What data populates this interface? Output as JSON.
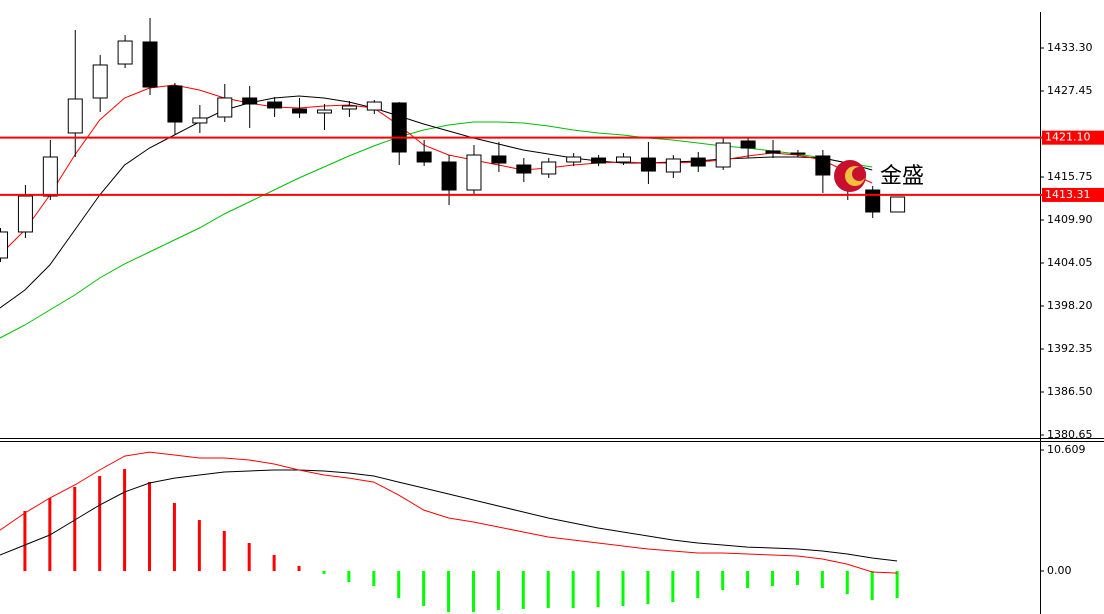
{
  "chart_data": [
    {
      "type": "candlestick",
      "ylim": [
        1380.24,
        1439.83
      ],
      "yticks": [
        {
          "value": 1433.3,
          "label": "1433.30"
        },
        1427.45,
        1415.75,
        {
          "value": 1409.9,
          "label": "1409.90"
        },
        1404.05,
        {
          "value": 1398.2,
          "label": "1398.20"
        },
        1392.35,
        {
          "value": 1386.5,
          "label": "1386.50"
        },
        1380.65
      ],
      "up_color": "#ffffff",
      "down_color": "#000000",
      "open": [
        1404.73,
        1408.27,
        1413.16,
        1421.74,
        1426.5,
        1431.12,
        1434.12,
        1428.13,
        1423.1,
        1423.91,
        1426.5,
        1425.95,
        1425.0,
        1424.46,
        1425.0,
        1424.86,
        1425.82,
        1419.15,
        1417.79,
        1413.98,
        1418.61,
        1417.38,
        1416.16,
        1417.79,
        1418.33,
        1417.79,
        1418.33,
        1416.43,
        1418.33,
        1417.11,
        1420.65,
        1419.29,
        1419.01,
        1418.61,
        1416.97,
        1413.98,
        1410.99
      ],
      "high": [
        1408.81,
        1414.66,
        1420.78,
        1435.75,
        1432.35,
        1435.07,
        1437.38,
        1428.54,
        1425.54,
        1428.4,
        1428.13,
        1426.63,
        1426.5,
        1425.68,
        1426.09,
        1426.23,
        1425.95,
        1420.78,
        1418.74,
        1420.1,
        1420.51,
        1418.33,
        1418.33,
        1419.01,
        1418.74,
        1419.01,
        1420.51,
        1418.74,
        1419.15,
        1421.19,
        1421.19,
        1420.78,
        1419.42,
        1419.42,
        1417.38,
        1414.52,
        1413.03
      ],
      "low": [
        1404.19,
        1407.45,
        1412.62,
        1418.47,
        1424.59,
        1430.58,
        1426.9,
        1421.46,
        1421.74,
        1423.23,
        1422.42,
        1423.91,
        1423.78,
        1422.14,
        1423.91,
        1424.32,
        1417.38,
        1417.24,
        1411.94,
        1413.3,
        1416.43,
        1415.07,
        1415.61,
        1417.24,
        1417.24,
        1417.38,
        1414.8,
        1415.61,
        1416.43,
        1416.7,
        1418.33,
        1418.33,
        1418.47,
        1413.57,
        1412.62,
        1410.17,
        1410.99
      ],
      "close": [
        1408.27,
        1413.16,
        1418.47,
        1426.36,
        1430.99,
        1434.25,
        1427.99,
        1423.23,
        1423.78,
        1426.5,
        1425.68,
        1425.14,
        1424.46,
        1424.86,
        1425.41,
        1425.95,
        1419.15,
        1417.79,
        1413.98,
        1418.74,
        1417.65,
        1416.29,
        1417.79,
        1418.47,
        1417.65,
        1418.47,
        1416.56,
        1418.2,
        1417.24,
        1420.37,
        1419.69,
        1419.01,
        1418.88,
        1416.02,
        1414.52,
        1410.99,
        1413.03
      ],
      "lines": [
        {
          "color": "#00c000",
          "values": [
            1393.85,
            1395.61,
            1397.65,
            1399.7,
            1402.01,
            1403.91,
            1405.55,
            1407.18,
            1408.81,
            1410.72,
            1412.35,
            1413.98,
            1415.61,
            1417.11,
            1418.61,
            1419.97,
            1421.19,
            1422.14,
            1422.82,
            1423.23,
            1423.23,
            1423.1,
            1422.69,
            1422.14,
            1421.74,
            1421.46,
            1421.06,
            1420.78,
            1420.37,
            1419.97,
            1419.69,
            1419.29,
            1418.88,
            1418.33,
            1417.65,
            1417.11,
            null
          ]
        },
        {
          "color": "#000000",
          "values": [
            1397.93,
            1400.38,
            1403.78,
            1408.54,
            1413.3,
            1417.38,
            1419.69,
            1421.46,
            1423.23,
            1424.86,
            1425.82,
            1426.5,
            1426.77,
            1426.5,
            1425.95,
            1425.14,
            1424.05,
            1422.96,
            1422.01,
            1421.06,
            1420.24,
            1419.42,
            1418.88,
            1418.33,
            1417.93,
            1417.65,
            1417.65,
            1417.79,
            1417.93,
            1418.2,
            1418.33,
            1418.47,
            1418.47,
            1418.33,
            1417.65,
            1416.7,
            null
          ]
        },
        {
          "color": "#ff0000",
          "values": [
            1405.14,
            1408.54,
            1413.3,
            1418.74,
            1423.5,
            1426.5,
            1427.86,
            1428.27,
            1427.59,
            1426.5,
            1425.82,
            1425.27,
            1425.14,
            1425.41,
            1425.54,
            1425.14,
            1422.82,
            1420.1,
            1418.74,
            1418.06,
            1417.38,
            1416.7,
            1416.97,
            1417.38,
            1417.65,
            1417.79,
            1417.65,
            1417.65,
            1417.79,
            1418.06,
            1418.61,
            1419.01,
            1418.74,
            1418.06,
            1416.43,
            1414.93,
            null
          ]
        }
      ],
      "hlines": [
        {
          "value": 1421.1,
          "label": "1421.10",
          "color": "#ff0000"
        },
        {
          "value": 1413.31,
          "label": "1413.31",
          "color": "#ff0000"
        }
      ],
      "annotation": "金盛"
    },
    {
      "type": "macd",
      "ylim": [
        -3.77,
        11.4
      ],
      "yticks": [
        10.609,
        {
          "value": 0,
          "label": "0.00"
        }
      ],
      "up_color": "#ff0000",
      "down_color": "#00ff00",
      "values": [
        null,
        5.26,
        6.4,
        7.37,
        8.33,
        8.94,
        7.8,
        5.96,
        4.47,
        3.51,
        2.46,
        1.4,
        0.44,
        -0.26,
        -0.96,
        -1.32,
        -2.37,
        -3.07,
        -3.59,
        -3.59,
        -3.42,
        -3.33,
        -3.24,
        -3.24,
        -3.16,
        -3.07,
        -2.89,
        -2.72,
        -2.37,
        -1.67,
        -1.49,
        -1.32,
        -1.23,
        -1.49,
        -2.02,
        -2.54,
        -2.37
      ],
      "lines": [
        {
          "color": "#000000",
          "values": [
            1.4,
            2.28,
            3.16,
            4.47,
            5.79,
            6.93,
            7.72,
            8.15,
            8.42,
            8.68,
            8.77,
            8.86,
            8.86,
            8.77,
            8.59,
            8.33,
            7.8,
            7.28,
            6.75,
            6.23,
            5.7,
            5.17,
            4.65,
            4.21,
            3.77,
            3.42,
            3.07,
            2.72,
            2.46,
            2.28,
            2.1,
            2.02,
            1.93,
            1.75,
            1.49,
            1.14,
            0.88
          ]
        },
        {
          "color": "#ff0000",
          "values": [
            3.59,
            5.09,
            6.4,
            7.54,
            8.86,
            10.08,
            10.43,
            10.17,
            9.91,
            9.91,
            9.73,
            9.38,
            8.86,
            8.42,
            8.15,
            7.8,
            6.66,
            5.35,
            4.65,
            4.3,
            3.86,
            3.42,
            2.98,
            2.72,
            2.46,
            2.19,
            1.93,
            1.75,
            1.58,
            1.58,
            1.49,
            1.4,
            1.32,
            1.05,
            0.61,
            -0.09,
            -0.18
          ]
        }
      ]
    }
  ]
}
